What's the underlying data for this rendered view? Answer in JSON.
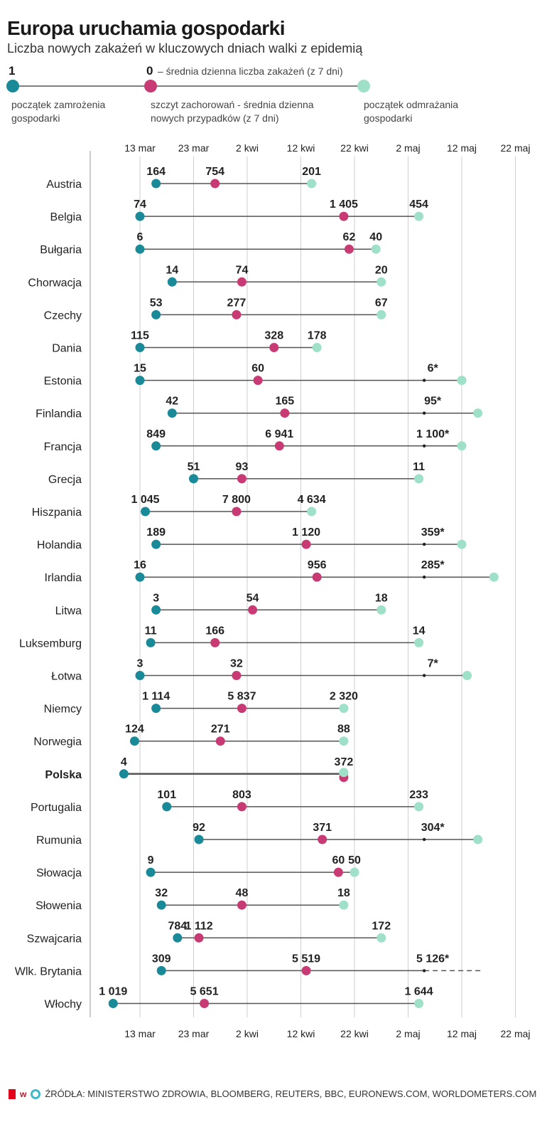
{
  "title": "Europa uruchamia gospodarki",
  "subtitle": "Liczba nowych zakażeń w kluczowych dniach walki z epidemią",
  "legend": {
    "start_value": "1",
    "peak_value": "0",
    "value_note": "– średnia dzienna liczba zakażeń (z 7 dni)",
    "start_label": "początek zamrożenia gospodarki",
    "peak_label": "szczyt zachorowań - średnia dzienna nowych przypadków (z 7 dni)",
    "end_label": "początek odmrażania gospodarki"
  },
  "colors": {
    "start": "#1a8a99",
    "peak": "#c83a74",
    "end": "#9fe0c8",
    "line": "#555555",
    "grid": "#cfcfcf"
  },
  "source": "ŹRÓDŁA: MINISTERSTWO ZDROWIA, BLOOMBERG, REUTERS, BBC, EURONEWS.COM, WORLDOMETERS.COM",
  "chart_data": {
    "type": "dumbbell",
    "x_ticks": [
      "13 mar",
      "23 mar",
      "2 kwi",
      "12 kwi",
      "22 kwi",
      "2 maj",
      "12 maj",
      "22 maj"
    ],
    "x_tick_dates": [
      "2020-03-13",
      "2020-03-23",
      "2020-04-02",
      "2020-04-12",
      "2020-04-22",
      "2020-05-02",
      "2020-05-12",
      "2020-05-22"
    ],
    "rows": [
      {
        "country": "Austria",
        "start_date": "2020-03-16",
        "start_label": "164",
        "peak_date": "2020-03-27",
        "peak_label": "754",
        "end_date": "2020-04-14",
        "end_label": "201"
      },
      {
        "country": "Belgia",
        "start_date": "2020-03-13",
        "start_label": "74",
        "peak_date": "2020-04-20",
        "peak_label": "1 405",
        "end_date": "2020-05-04",
        "end_label": "454"
      },
      {
        "country": "Bułgaria",
        "start_date": "2020-03-13",
        "start_label": "6",
        "peak_date": "2020-04-21",
        "peak_label": "62",
        "end_date": "2020-04-26",
        "end_label": "40"
      },
      {
        "country": "Chorwacja",
        "start_date": "2020-03-19",
        "start_label": "14",
        "peak_date": "2020-04-01",
        "peak_label": "74",
        "end_date": "2020-04-27",
        "end_label": "20"
      },
      {
        "country": "Czechy",
        "start_date": "2020-03-16",
        "start_label": "53",
        "peak_date": "2020-03-31",
        "peak_label": "277",
        "end_date": "2020-04-27",
        "end_label": "67"
      },
      {
        "country": "Dania",
        "start_date": "2020-03-13",
        "start_label": "115",
        "peak_date": "2020-04-07",
        "peak_label": "328",
        "end_date": "2020-04-15",
        "end_label": "178"
      },
      {
        "country": "Estonia",
        "start_date": "2020-03-13",
        "start_label": "15",
        "peak_date": "2020-04-04",
        "peak_label": "60",
        "end_date": "2020-05-12",
        "end_label": "6*",
        "current_date": "2020-05-05"
      },
      {
        "country": "Finlandia",
        "start_date": "2020-03-19",
        "start_label": "42",
        "peak_date": "2020-04-09",
        "peak_label": "165",
        "end_date": "2020-05-15",
        "end_label": "95*",
        "current_date": "2020-05-05"
      },
      {
        "country": "Francja",
        "start_date": "2020-03-16",
        "start_label": "849",
        "peak_date": "2020-04-08",
        "peak_label": "6 941",
        "end_date": "2020-05-12",
        "end_label": "1 100*",
        "current_date": "2020-05-05"
      },
      {
        "country": "Grecja",
        "start_date": "2020-03-23",
        "start_label": "51",
        "peak_date": "2020-04-01",
        "peak_label": "93",
        "end_date": "2020-05-04",
        "end_label": "11"
      },
      {
        "country": "Hiszpania",
        "start_date": "2020-03-14",
        "start_label": "1 045",
        "peak_date": "2020-03-31",
        "peak_label": "7 800",
        "end_date": "2020-04-14",
        "end_label": "4 634"
      },
      {
        "country": "Holandia",
        "start_date": "2020-03-16",
        "start_label": "189",
        "peak_date": "2020-04-13",
        "peak_label": "1 120",
        "end_date": "2020-05-12",
        "end_label": "359*",
        "current_date": "2020-05-05"
      },
      {
        "country": "Irlandia",
        "start_date": "2020-03-13",
        "start_label": "16",
        "peak_date": "2020-04-15",
        "peak_label": "956",
        "end_date": "2020-05-18",
        "end_label": "285*",
        "current_date": "2020-05-05"
      },
      {
        "country": "Litwa",
        "start_date": "2020-03-16",
        "start_label": "3",
        "peak_date": "2020-04-03",
        "peak_label": "54",
        "end_date": "2020-04-27",
        "end_label": "18"
      },
      {
        "country": "Luksemburg",
        "start_date": "2020-03-15",
        "start_label": "11",
        "peak_date": "2020-03-27",
        "peak_label": "166",
        "end_date": "2020-05-04",
        "end_label": "14"
      },
      {
        "country": "Łotwa",
        "start_date": "2020-03-13",
        "start_label": "3",
        "peak_date": "2020-03-31",
        "peak_label": "32",
        "end_date": "2020-05-13",
        "end_label": "7*",
        "current_date": "2020-05-05"
      },
      {
        "country": "Niemcy",
        "start_date": "2020-03-16",
        "start_label": "1 114",
        "peak_date": "2020-04-01",
        "peak_label": "5 837",
        "end_date": "2020-04-20",
        "end_label": "2 320"
      },
      {
        "country": "Norwegia",
        "start_date": "2020-03-12",
        "start_label": "124",
        "peak_date": "2020-03-28",
        "peak_label": "271",
        "end_date": "2020-04-20",
        "end_label": "88"
      },
      {
        "country": "Polska",
        "start_date": "2020-03-10",
        "start_label": "4",
        "peak_date": "2020-04-20",
        "peak_label": "",
        "end_date": "2020-04-20",
        "end_label": "372"
      },
      {
        "country": "Portugalia",
        "start_date": "2020-03-18",
        "start_label": "101",
        "peak_date": "2020-04-01",
        "peak_label": "803",
        "end_date": "2020-05-04",
        "end_label": "233"
      },
      {
        "country": "Rumunia",
        "start_date": "2020-03-24",
        "start_label": "92",
        "peak_date": "2020-04-16",
        "peak_label": "371",
        "end_date": "2020-05-15",
        "end_label": "304*",
        "current_date": "2020-05-05"
      },
      {
        "country": "Słowacja",
        "start_date": "2020-03-15",
        "start_label": "9",
        "peak_date": "2020-04-19",
        "peak_label": "60",
        "end_date": "2020-04-22",
        "end_label": "50"
      },
      {
        "country": "Słowenia",
        "start_date": "2020-03-17",
        "start_label": "32",
        "peak_date": "2020-04-01",
        "peak_label": "48",
        "end_date": "2020-04-20",
        "end_label": "18"
      },
      {
        "country": "Szwajcaria",
        "start_date": "2020-03-20",
        "start_label": "784",
        "peak_date": "2020-03-24",
        "peak_label": "1 112",
        "end_date": "2020-04-27",
        "end_label": "172"
      },
      {
        "country": "Wlk. Brytania",
        "start_date": "2020-03-17",
        "start_label": "309",
        "peak_date": "2020-04-13",
        "peak_label": "5 519",
        "end_date": "",
        "end_label": "5 126*",
        "current_date": "2020-05-05",
        "ongoing": true
      },
      {
        "country": "Włochy",
        "start_date": "2020-03-08",
        "start_label": "1 019",
        "peak_date": "2020-03-25",
        "peak_label": "5 651",
        "end_date": "2020-05-04",
        "end_label": "1 644"
      }
    ],
    "highlight": "Polska"
  }
}
